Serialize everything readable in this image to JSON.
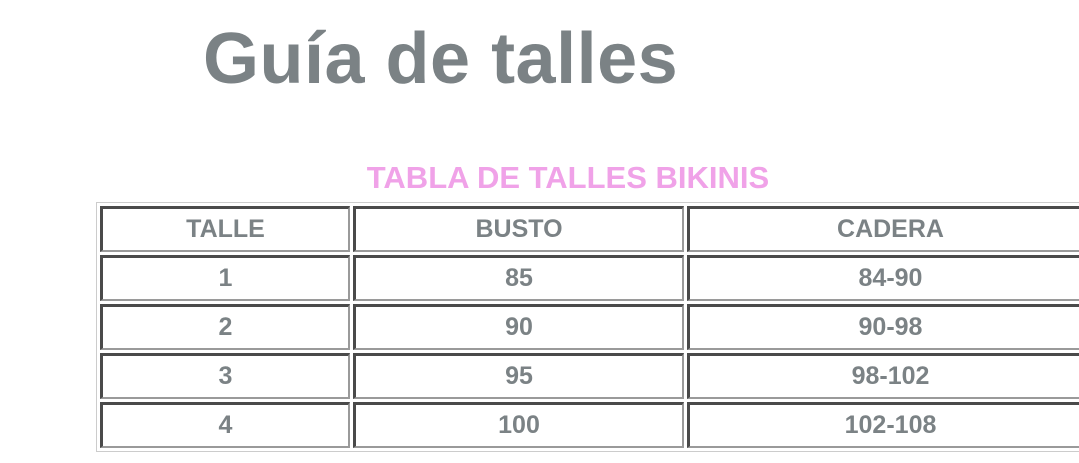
{
  "page": {
    "title": "Guía de talles"
  },
  "size_table": {
    "caption": "TABLA DE TALLES BIKINIS",
    "headers": [
      "TALLE",
      "BUSTO",
      "CADERA"
    ],
    "rows": [
      [
        "1",
        "85",
        "84-90"
      ],
      [
        "2",
        "90",
        "90-98"
      ],
      [
        "3",
        "95",
        "98-102"
      ],
      [
        "4",
        "100",
        "102-108"
      ]
    ]
  },
  "colors": {
    "title": "#7b8285",
    "caption": "#f0a2e8",
    "text": "#7b8285"
  }
}
